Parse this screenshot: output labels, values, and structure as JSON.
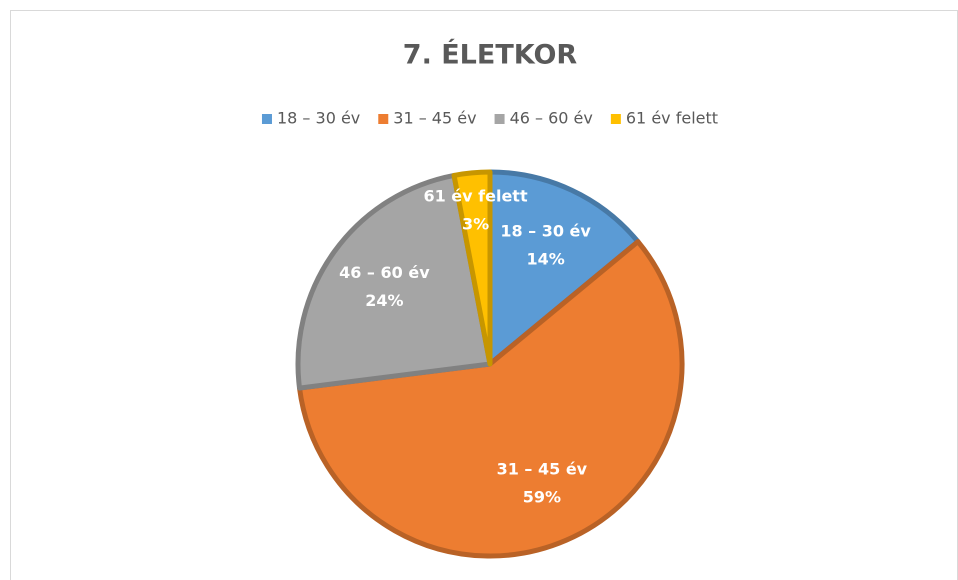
{
  "chart_data": {
    "type": "pie",
    "title": "7. ÉLETKOR",
    "categories": [
      "18 – 30 év",
      "31 – 45 év",
      "46 – 60 év",
      "61 év felett"
    ],
    "values": [
      14,
      59,
      24,
      3
    ],
    "value_labels": [
      "14%",
      "59%",
      "24%",
      "3%"
    ],
    "colors": [
      "#5b9bd5",
      "#ed7d31",
      "#a5a5a5",
      "#ffc000"
    ],
    "legend": "top"
  }
}
